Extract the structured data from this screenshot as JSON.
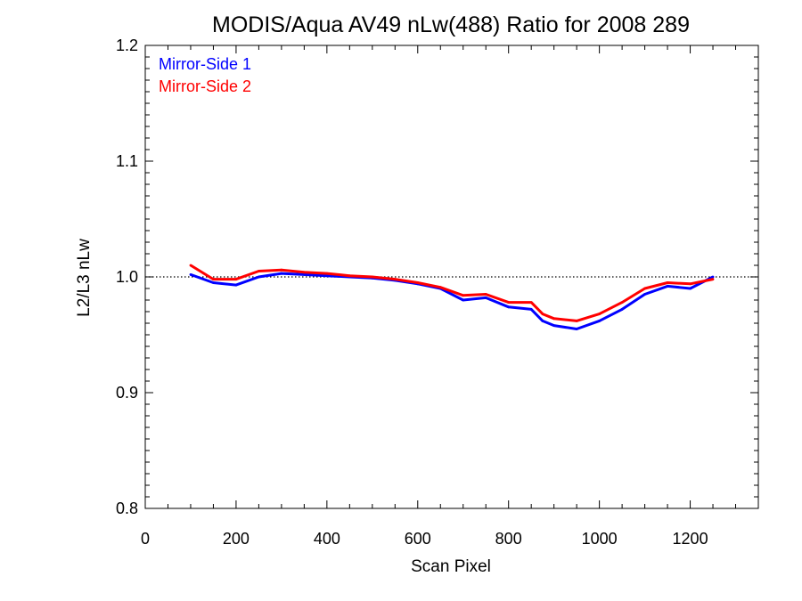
{
  "chart_data": {
    "type": "line",
    "title": "MODIS/Aqua AV49 nLw(488) Ratio for 2008 289",
    "xlabel": "Scan Pixel",
    "ylabel": "L2/L3 nLw",
    "xlim": [
      0,
      1350
    ],
    "ylim": [
      0.8,
      1.2
    ],
    "xticks": [
      0,
      200,
      400,
      600,
      800,
      1000,
      1200
    ],
    "yticks": [
      0.8,
      0.9,
      1.0,
      1.1,
      1.2
    ],
    "xtick_labels": [
      "0",
      "200",
      "400",
      "600",
      "800",
      "1000",
      "1200"
    ],
    "ytick_labels": [
      "0.8",
      "0.9",
      "1.0",
      "1.1",
      "1.2"
    ],
    "reference_line": {
      "y": 1.0,
      "style": "dotted"
    },
    "legend_position": "top-left",
    "x": [
      100,
      150,
      200,
      250,
      300,
      350,
      400,
      450,
      500,
      550,
      600,
      650,
      700,
      750,
      800,
      850,
      875,
      900,
      950,
      1000,
      1050,
      1100,
      1150,
      1200,
      1250
    ],
    "series": [
      {
        "name": "Mirror-Side 1",
        "color": "#0000ff",
        "values": [
          1.002,
          0.995,
          0.993,
          1.0,
          1.003,
          1.002,
          1.001,
          1.0,
          0.999,
          0.997,
          0.994,
          0.99,
          0.98,
          0.982,
          0.974,
          0.972,
          0.962,
          0.958,
          0.955,
          0.962,
          0.972,
          0.985,
          0.992,
          0.99,
          1.0
        ]
      },
      {
        "name": "Mirror-Side 2",
        "color": "#ff0000",
        "values": [
          1.01,
          0.998,
          0.998,
          1.005,
          1.006,
          1.004,
          1.003,
          1.001,
          1.0,
          0.998,
          0.995,
          0.991,
          0.984,
          0.985,
          0.978,
          0.978,
          0.968,
          0.964,
          0.962,
          0.968,
          0.978,
          0.99,
          0.995,
          0.994,
          0.998
        ]
      }
    ]
  }
}
